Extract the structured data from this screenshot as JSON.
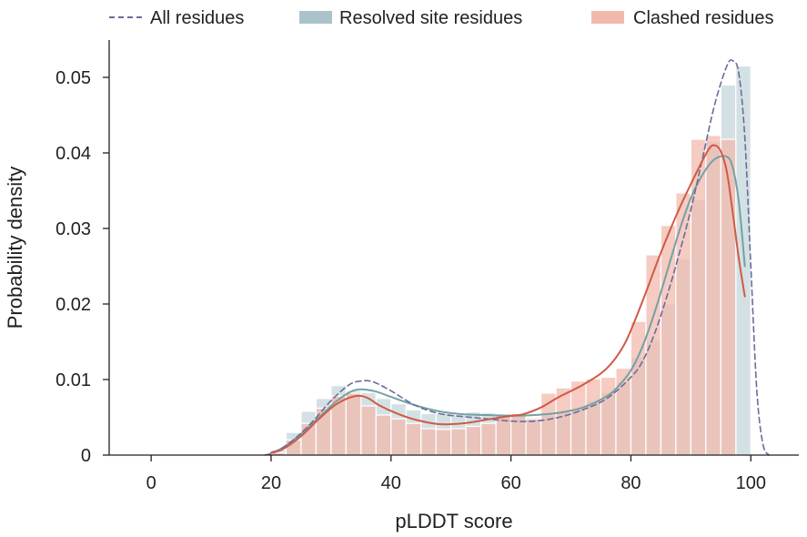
{
  "chart_data": {
    "type": "histogram",
    "xlabel": "pLDDT score",
    "ylabel": "Probability density",
    "xlim": [
      -7,
      108
    ],
    "ylim": [
      0,
      0.05
    ],
    "x_ticks": [
      0,
      20,
      40,
      60,
      80,
      100
    ],
    "y_ticks": [
      0,
      0.01,
      0.02,
      0.03,
      0.04,
      0.05
    ],
    "y_tick_labels": [
      "0",
      "0.01",
      "0.02",
      "0.03",
      "0.04",
      "0.05"
    ],
    "grid": false,
    "legend": {
      "position": "top",
      "entries": [
        {
          "label": "All residues",
          "style": "dashed-line",
          "color": "#6a6c9c"
        },
        {
          "label": "Resolved site residues",
          "style": "patch",
          "color": "#a9c3c9"
        },
        {
          "label": "Clashed residues",
          "style": "patch",
          "color": "#f1b9ad"
        }
      ]
    },
    "bin_edges": [
      20,
      22.5,
      25,
      27.5,
      30,
      32.5,
      35,
      37.5,
      40,
      42.5,
      45,
      47.5,
      50,
      52.5,
      55,
      57.5,
      60,
      62.5,
      65,
      67.5,
      70,
      72.5,
      75,
      77.5,
      80,
      82.5,
      85,
      87.5,
      90,
      92.5,
      95,
      97.5,
      100
    ],
    "series": [
      {
        "name": "Resolved site residues",
        "kind": "histogram",
        "color": "#a9c3c9",
        "opacity": 0.5,
        "values": [
          0.0007,
          0.003,
          0.0058,
          0.0075,
          0.0092,
          0.0085,
          0.0083,
          0.0075,
          0.0068,
          0.006,
          0.0055,
          0.0055,
          0.0053,
          0.0057,
          0.0056,
          0.0055,
          0.0052,
          0.005,
          0.0053,
          0.0057,
          0.0062,
          0.0072,
          0.0083,
          0.0097,
          0.013,
          0.0152,
          0.02,
          0.026,
          0.0338,
          0.0415,
          0.049,
          0.0515
        ]
      },
      {
        "name": "Clashed residues",
        "kind": "histogram",
        "color": "#f1b9ad",
        "opacity": 0.75,
        "values": [
          0.0003,
          0.002,
          0.0042,
          0.0062,
          0.0078,
          0.0082,
          0.0065,
          0.0053,
          0.0048,
          0.0042,
          0.0035,
          0.0034,
          0.0035,
          0.0038,
          0.0042,
          0.0052,
          0.0055,
          0.0048,
          0.0082,
          0.0089,
          0.0098,
          0.0101,
          0.0103,
          0.0115,
          0.0177,
          0.0265,
          0.0304,
          0.0347,
          0.0418,
          0.0423,
          0.0418,
          0.0
        ]
      },
      {
        "name": "Resolved site residues",
        "kind": "kde",
        "color": "#74a1a4",
        "width": 2,
        "dash": "",
        "points": [
          [
            20,
            0.0003
          ],
          [
            22,
            0.001
          ],
          [
            25,
            0.0028
          ],
          [
            28,
            0.005
          ],
          [
            31,
            0.0072
          ],
          [
            34,
            0.0086
          ],
          [
            37,
            0.0085
          ],
          [
            40,
            0.0077
          ],
          [
            44,
            0.0066
          ],
          [
            48,
            0.0058
          ],
          [
            52,
            0.0054
          ],
          [
            56,
            0.0053
          ],
          [
            60,
            0.0052
          ],
          [
            64,
            0.0053
          ],
          [
            68,
            0.0056
          ],
          [
            72,
            0.0063
          ],
          [
            76,
            0.0078
          ],
          [
            78,
            0.0092
          ],
          [
            80,
            0.0112
          ],
          [
            82,
            0.0145
          ],
          [
            84,
            0.019
          ],
          [
            86,
            0.0242
          ],
          [
            88,
            0.0295
          ],
          [
            90,
            0.034
          ],
          [
            92,
            0.0372
          ],
          [
            94,
            0.0392
          ],
          [
            96,
            0.0395
          ],
          [
            97,
            0.038
          ],
          [
            98,
            0.0335
          ],
          [
            99,
            0.025
          ]
        ]
      },
      {
        "name": "All residues",
        "kind": "kde",
        "color": "#6a6c9c",
        "width": 1.6,
        "dash": "6 4",
        "points": [
          [
            19,
            0.0
          ],
          [
            21,
            0.0005
          ],
          [
            24,
            0.0022
          ],
          [
            27,
            0.0045
          ],
          [
            30,
            0.0072
          ],
          [
            33,
            0.0093
          ],
          [
            35,
            0.0098
          ],
          [
            37,
            0.0097
          ],
          [
            40,
            0.0085
          ],
          [
            44,
            0.0066
          ],
          [
            48,
            0.0055
          ],
          [
            52,
            0.0051
          ],
          [
            56,
            0.0048
          ],
          [
            60,
            0.0045
          ],
          [
            64,
            0.0045
          ],
          [
            68,
            0.005
          ],
          [
            72,
            0.006
          ],
          [
            76,
            0.0075
          ],
          [
            80,
            0.0103
          ],
          [
            82,
            0.0125
          ],
          [
            84,
            0.0162
          ],
          [
            86,
            0.021
          ],
          [
            88,
            0.0265
          ],
          [
            90,
            0.0325
          ],
          [
            92,
            0.0395
          ],
          [
            94,
            0.0465
          ],
          [
            96,
            0.0515
          ],
          [
            97,
            0.0522
          ],
          [
            98,
            0.0505
          ],
          [
            99,
            0.042
          ],
          [
            100,
            0.025
          ],
          [
            101,
            0.0085
          ],
          [
            102,
            0.0015
          ],
          [
            103,
            0.0
          ]
        ]
      },
      {
        "name": "Clashed residues",
        "kind": "kde",
        "color": "#cf5a45",
        "width": 2,
        "dash": "",
        "points": [
          [
            20,
            0.0003
          ],
          [
            22,
            0.0008
          ],
          [
            25,
            0.0025
          ],
          [
            28,
            0.0048
          ],
          [
            31,
            0.0068
          ],
          [
            34,
            0.0078
          ],
          [
            36,
            0.0076
          ],
          [
            38,
            0.0066
          ],
          [
            41,
            0.0055
          ],
          [
            44,
            0.0047
          ],
          [
            48,
            0.0041
          ],
          [
            52,
            0.0042
          ],
          [
            56,
            0.0047
          ],
          [
            60,
            0.0052
          ],
          [
            62,
            0.0054
          ],
          [
            65,
            0.0063
          ],
          [
            68,
            0.0077
          ],
          [
            72,
            0.0093
          ],
          [
            76,
            0.0115
          ],
          [
            79,
            0.0148
          ],
          [
            82,
            0.0205
          ],
          [
            85,
            0.0268
          ],
          [
            88,
            0.0325
          ],
          [
            91,
            0.0375
          ],
          [
            93,
            0.0405
          ],
          [
            94,
            0.041
          ],
          [
            95,
            0.0402
          ],
          [
            96,
            0.0375
          ],
          [
            97,
            0.032
          ],
          [
            98,
            0.026
          ],
          [
            99,
            0.021
          ]
        ]
      }
    ]
  }
}
